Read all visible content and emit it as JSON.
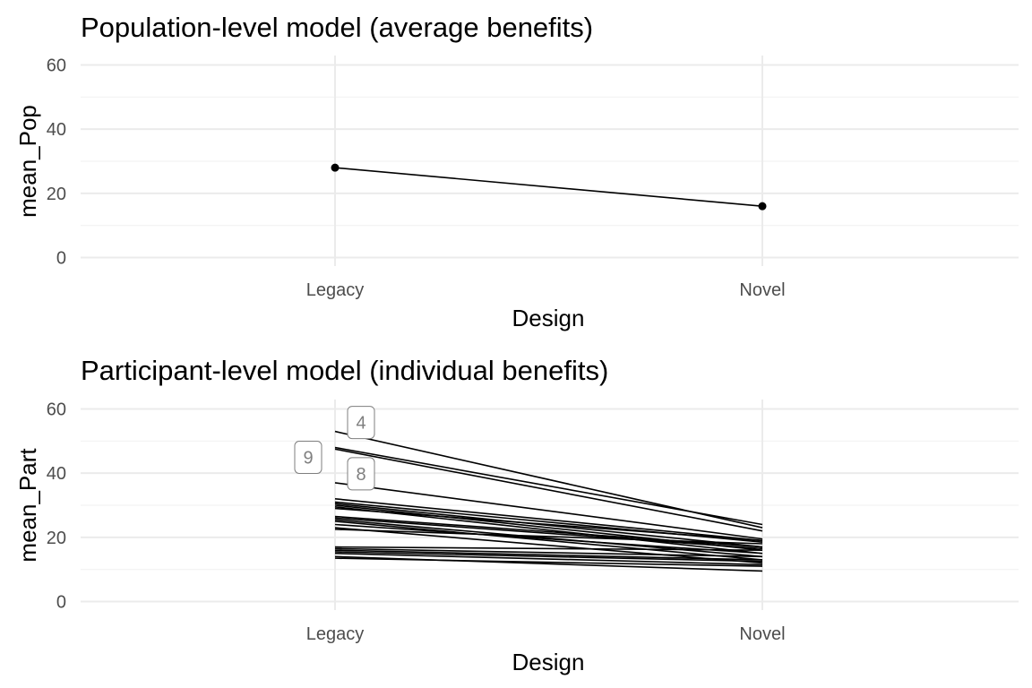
{
  "chart_data": [
    {
      "type": "line",
      "title": "Population-level model (average benefits)",
      "xlabel": "Design",
      "ylabel": "mean_Pop",
      "categories": [
        "Legacy",
        "Novel"
      ],
      "ylim": [
        0,
        60
      ],
      "yticks": [
        0,
        20,
        40,
        60
      ],
      "grid": true,
      "points": true,
      "series": [
        {
          "values": [
            28,
            16
          ]
        }
      ]
    },
    {
      "type": "line",
      "title": "Participant-level model (individual benefits)",
      "xlabel": "Design",
      "ylabel": "mean_Part",
      "categories": [
        "Legacy",
        "Novel"
      ],
      "ylim": [
        0,
        60
      ],
      "yticks": [
        0,
        20,
        40,
        60
      ],
      "grid": true,
      "points": false,
      "series": [
        {
          "label": "4",
          "values": [
            53,
            23
          ]
        },
        {
          "label": "9",
          "values": [
            48,
            24
          ]
        },
        {
          "values": [
            47.5,
            22
          ]
        },
        {
          "label": "8",
          "values": [
            37,
            19.5
          ]
        },
        {
          "values": [
            32,
            19
          ]
        },
        {
          "values": [
            31,
            18.5
          ]
        },
        {
          "values": [
            30.5,
            17
          ]
        },
        {
          "values": [
            30,
            16
          ]
        },
        {
          "values": [
            29.5,
            15
          ]
        },
        {
          "values": [
            29,
            19
          ]
        },
        {
          "values": [
            26.5,
            17
          ]
        },
        {
          "values": [
            26,
            16.5
          ]
        },
        {
          "values": [
            25.5,
            14
          ]
        },
        {
          "values": [
            25,
            13
          ]
        },
        {
          "values": [
            24,
            15
          ]
        },
        {
          "values": [
            23,
            12
          ]
        },
        {
          "values": [
            22.5,
            18
          ]
        },
        {
          "values": [
            17,
            16
          ]
        },
        {
          "values": [
            16.5,
            14
          ]
        },
        {
          "values": [
            16,
            13
          ]
        },
        {
          "values": [
            15.5,
            12.5
          ]
        },
        {
          "values": [
            15,
            11.5
          ]
        },
        {
          "values": [
            14,
            9.5
          ]
        },
        {
          "values": [
            13.5,
            11
          ]
        }
      ]
    }
  ]
}
